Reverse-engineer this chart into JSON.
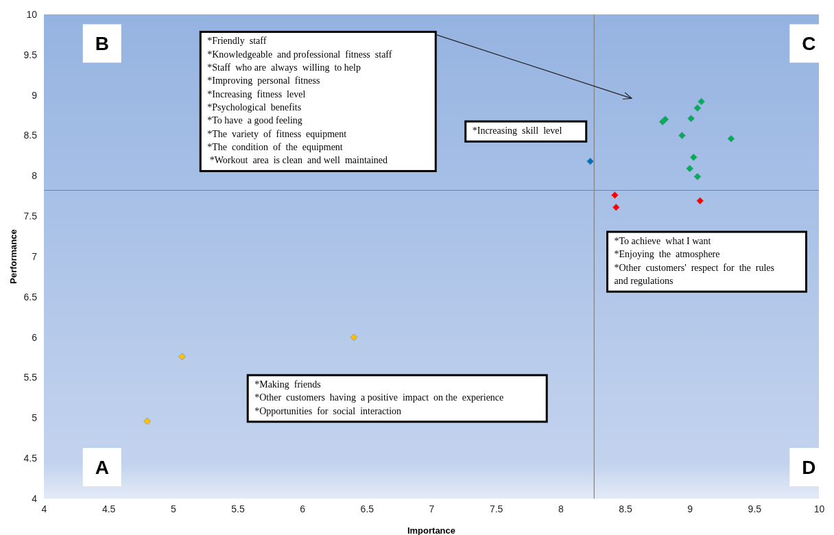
{
  "chart_data": {
    "type": "scatter",
    "xlabel": "Importance",
    "ylabel": "Performance",
    "xlim": [
      4,
      10
    ],
    "ylim": [
      4,
      10
    ],
    "xticks": [
      4,
      4.5,
      5,
      5.5,
      6,
      6.5,
      7,
      7.5,
      8,
      8.5,
      9,
      9.5,
      10
    ],
    "yticks": [
      4,
      4.5,
      5,
      5.5,
      6,
      6.5,
      7,
      7.5,
      8,
      8.5,
      9,
      9.5,
      10
    ],
    "grid": false,
    "marker": "diamond",
    "series": [
      {
        "color": "#00b050",
        "x": [
          9.09,
          9.06,
          9.01,
          8.81,
          8.79,
          8.94,
          9.32,
          9.03,
          9.0,
          9.06
        ],
        "values": [
          8.92,
          8.84,
          8.71,
          8.7,
          8.67,
          8.5,
          8.46,
          8.23,
          8.09,
          7.99
        ]
      },
      {
        "color": "#0070c0",
        "x": [
          8.23
        ],
        "values": [
          8.18
        ]
      },
      {
        "color": "#ff0000",
        "x": [
          8.42,
          8.43,
          9.08
        ],
        "values": [
          7.76,
          7.61,
          7.69
        ]
      },
      {
        "color": "#ffc000",
        "x": [
          4.8,
          5.07,
          6.4
        ],
        "values": [
          4.96,
          5.76,
          6.0
        ]
      }
    ],
    "ref_lines": [
      {
        "axis": "x",
        "value": 8.26,
        "color": "#808080"
      },
      {
        "axis": "y",
        "value": 7.82,
        "color": "#808080"
      }
    ],
    "annotations": [
      "B",
      "C",
      "A",
      "D",
      "*Friendly  staff\n*Knowledgeable  and professional  fitness  staff\n*Staff  who are  always  willing  to help\n*Improving  personal  fitness\n*Increasing  fitness  level\n*Psychological  benefits\n*To have  a good feeling\n*The  variety  of  fitness  equipment\n*The  condition  of  the  equipment\n *Workout  area  is clean  and well  maintained",
      "*Increasing  skill  level",
      "*To achieve  what I want\n*Enjoying  the  atmosphere\n*Other  customers'  respect  for  the  rules\nand regulations",
      "*Making  friends\n*Other  customers  having  a positive  impact  on the  experience\n*Opportunities  for  social  interaction"
    ]
  }
}
